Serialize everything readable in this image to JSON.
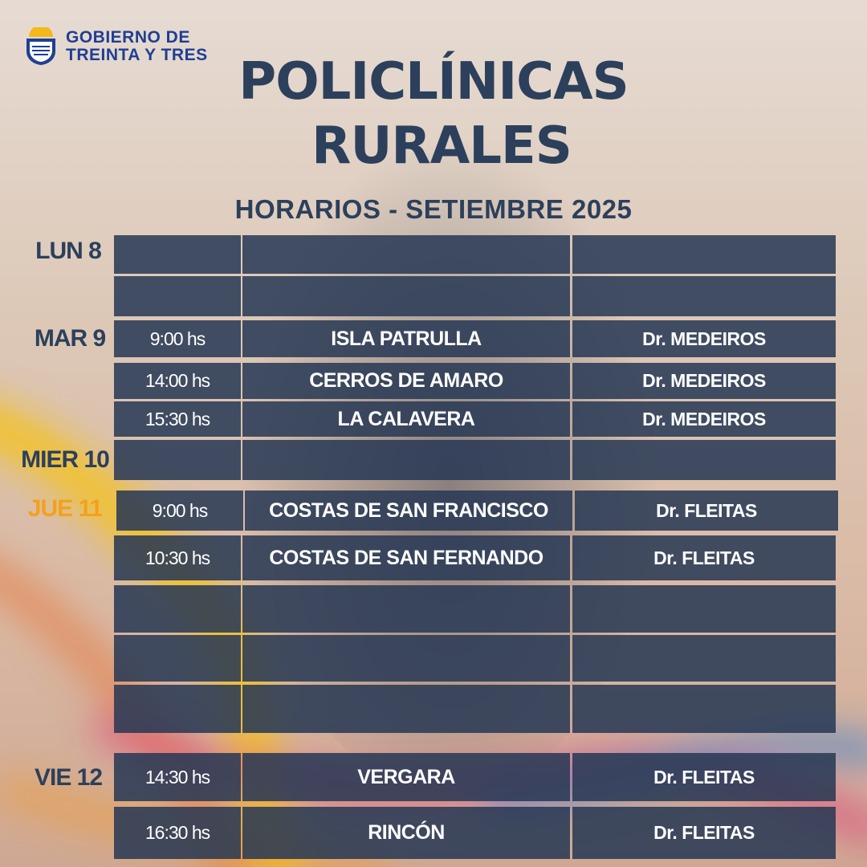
{
  "header": {
    "org_line1": "GOBIERNO DE",
    "org_line2": "TREINTA Y TRES",
    "title_line1": "POLICLÍNICAS",
    "title_line2": "RURALES",
    "subtitle": "HORARIOS -  SETIEMBRE 2025"
  },
  "days": {
    "lun": "LUN 8",
    "mar": "MAR 9",
    "mier": "MIER 10",
    "jue": "JUE 11",
    "vie": "VIE 12"
  },
  "schedule": [
    {
      "time": "",
      "place": "",
      "doctor": ""
    },
    {
      "time": "",
      "place": "",
      "doctor": ""
    },
    {
      "time": "9:00  hs",
      "place": "ISLA PATRULLA",
      "doctor": "Dr. MEDEIROS"
    },
    {
      "time": "14:00 hs",
      "place": "CERROS DE AMARO",
      "doctor": "Dr. MEDEIROS"
    },
    {
      "time": "15:30 hs",
      "place": "LA CALAVERA",
      "doctor": "Dr. MEDEIROS"
    },
    {
      "time": "",
      "place": "",
      "doctor": ""
    },
    {
      "time": "9:00 hs",
      "place": "COSTAS DE SAN FRANCISCO",
      "doctor": "Dr.  FLEITAS"
    },
    {
      "time": "10:30 hs",
      "place": "COSTAS DE SAN FERNANDO",
      "doctor": "Dr.  FLEITAS"
    },
    {
      "time": "",
      "place": "",
      "doctor": ""
    },
    {
      "time": "",
      "place": "",
      "doctor": ""
    },
    {
      "time": "",
      "place": "",
      "doctor": ""
    },
    {
      "time": "14:30 hs",
      "place": "VERGARA",
      "doctor": "Dr.  FLEITAS"
    },
    {
      "time": "16:30 hs",
      "place": "RINCÓN",
      "doctor": "Dr. FLEITAS"
    }
  ],
  "colors": {
    "title": "#2c405c",
    "cell": "#263854",
    "highlight_day": "#f2a21a",
    "logo": "#1e3f93"
  }
}
